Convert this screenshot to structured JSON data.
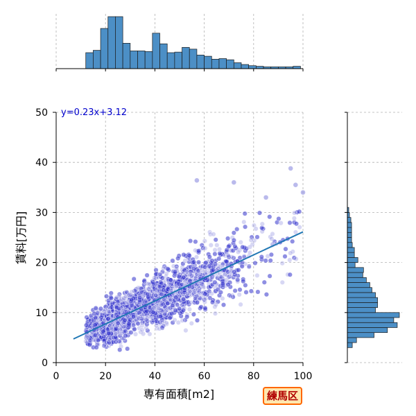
{
  "chart_data": {
    "type": "scatter",
    "xlabel": "専有面積[m2]",
    "ylabel": "賃料[万円]",
    "xlim": [
      0,
      100
    ],
    "ylim": [
      0,
      50
    ],
    "xticks": [
      0,
      20,
      40,
      60,
      80,
      100
    ],
    "yticks": [
      0,
      10,
      20,
      30,
      40,
      50
    ],
    "grid": true,
    "colors": {
      "points": "#3333cc",
      "hist": "#4c8fc6",
      "fit": "#2077b4",
      "grid": "#b0b0b0",
      "equation": "#0000cc"
    },
    "regression": {
      "equation": "y=0.23x+3.12",
      "slope": 0.23,
      "intercept": 3.12,
      "x_range": [
        7,
        100
      ]
    },
    "point_cloud": {
      "x_range": [
        6,
        100
      ],
      "y_trend": "y=0.23x+3.12",
      "y_spread_sd": 3.0,
      "notable_points": [
        [
          95,
          38.8
        ],
        [
          57,
          36.4
        ],
        [
          72,
          36.0
        ],
        [
          100,
          34.0
        ],
        [
          85,
          33.0
        ],
        [
          97,
          35.5
        ]
      ]
    },
    "x_histogram": {
      "bin_edges": [
        0,
        3,
        6,
        9,
        12,
        15,
        18,
        21,
        24,
        27,
        30,
        33,
        36,
        39,
        42,
        45,
        48,
        51,
        54,
        57,
        60,
        63,
        66,
        69,
        72,
        75,
        78,
        81,
        84,
        87,
        90,
        93,
        96,
        99,
        102
      ],
      "counts": [
        0,
        0,
        0,
        0,
        27,
        31,
        68,
        88,
        88,
        43,
        30,
        30,
        29,
        60,
        42,
        27,
        28,
        36,
        33,
        23,
        21,
        16,
        17,
        15,
        10,
        7,
        5,
        4,
        3,
        3,
        3,
        3,
        4,
        0
      ]
    },
    "y_histogram": {
      "bin_edges": [
        3,
        4,
        5,
        6,
        7,
        8,
        9,
        10,
        11,
        12,
        13,
        14,
        15,
        16,
        17,
        18,
        19,
        20,
        21,
        22,
        23,
        24,
        25,
        26,
        27,
        28,
        29,
        30,
        31
      ],
      "counts": [
        7,
        13,
        38,
        57,
        71,
        66,
        74,
        40,
        43,
        43,
        40,
        35,
        32,
        27,
        22,
        23,
        11,
        15,
        10,
        10,
        7,
        6,
        6,
        6,
        6,
        5,
        3,
        2
      ]
    }
  },
  "badge": {
    "label": "練馬区"
  }
}
